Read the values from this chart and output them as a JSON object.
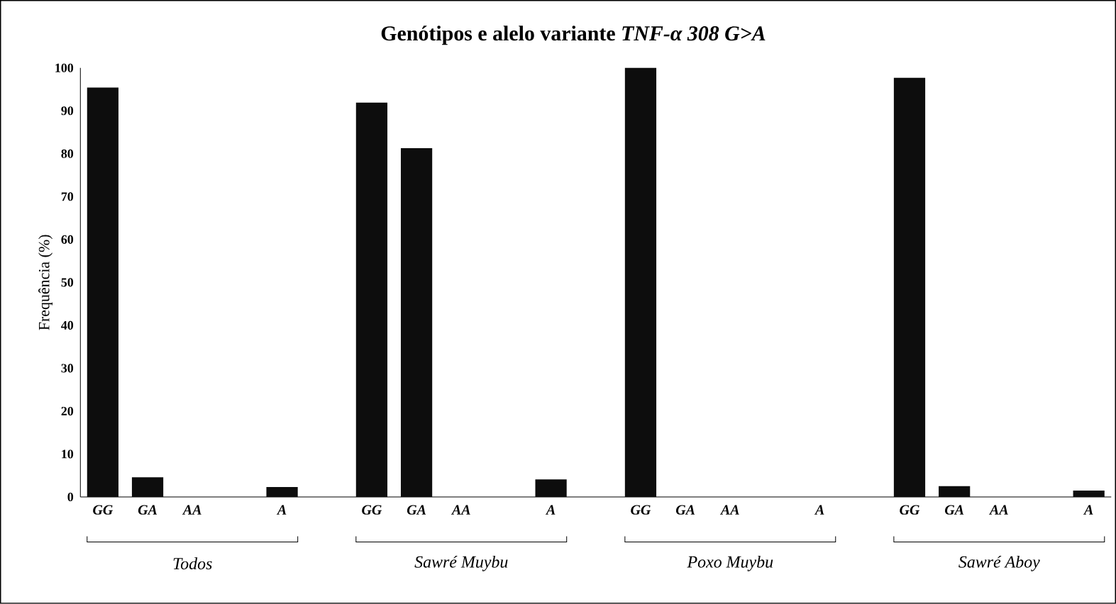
{
  "chart_data": {
    "type": "bar",
    "title": "Genótipos e alelo variante *TNF-α 308 G>A*",
    "ylabel": "Frequência (%)",
    "categories": [
      "GG",
      "GA",
      "AA",
      null,
      "A",
      null,
      "GG",
      "GA",
      "AA",
      null,
      "A",
      null,
      "GG",
      "GA",
      "AA",
      null,
      "A",
      null,
      "GG",
      "GA",
      "AA",
      null,
      "A"
    ],
    "values": [
      95.4,
      4.6,
      0,
      null,
      2.3,
      null,
      91.9,
      81.3,
      0,
      null,
      4.1,
      null,
      100,
      0,
      0,
      null,
      0,
      null,
      97.7,
      2.5,
      0,
      null,
      1.5
    ],
    "color": "#0d0d0d",
    "ylim": [
      0,
      100
    ],
    "yticks": [
      0,
      10,
      20,
      30,
      40,
      50,
      60,
      70,
      80,
      90,
      100
    ],
    "annotations": [
      "Todos",
      "Sawré Muybu",
      "Poxo Muybu",
      "Sawré Aboy"
    ]
  }
}
